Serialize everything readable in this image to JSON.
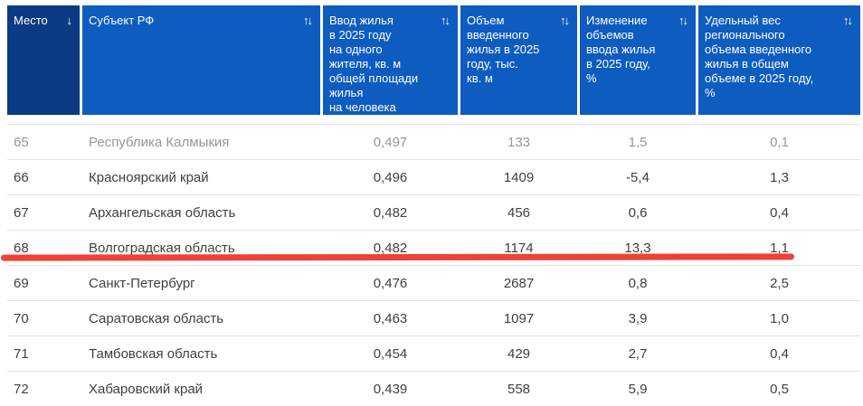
{
  "table": {
    "columns": [
      {
        "label": "Место",
        "sort_icon": "↓"
      },
      {
        "label": "Субъект РФ",
        "sort_icon": "↑↓"
      },
      {
        "label": "Ввод жилья\nв 2025 году\nна одного\nжителя, кв. м\nобщей площади\nжилья\nна человека",
        "sort_icon": "↑↓"
      },
      {
        "label": "Объем\nвведенного\nжилья в 2025\nгоду, тыс.\nкв. м",
        "sort_icon": "↑↓"
      },
      {
        "label": "Изменение\nобъемов\nввода жилья\nв 2025 году,\n%",
        "sort_icon": "↑↓"
      },
      {
        "label": "Удельный вес\nрегионального\nобъема введенного\nжилья в общем\nобъеме в 2025 году,\n%",
        "sort_icon": "↑↓"
      }
    ],
    "rows": [
      {
        "place": "65",
        "region": "Республика Калмыкия",
        "per_capita": "0,497",
        "volume": "133",
        "change": "1,5",
        "share": "0,1",
        "muted": true
      },
      {
        "place": "66",
        "region": "Красноярский край",
        "per_capita": "0,496",
        "volume": "1409",
        "change": "-5,4",
        "share": "1,3"
      },
      {
        "place": "67",
        "region": "Архангельская область",
        "per_capita": "0,482",
        "volume": "456",
        "change": "0,6",
        "share": "0,4"
      },
      {
        "place": "68",
        "region": "Волгоградская область",
        "per_capita": "0,482",
        "volume": "1174",
        "change": "13,3",
        "share": "1,1",
        "highlighted": true
      },
      {
        "place": "69",
        "region": "Санкт-Петербург",
        "per_capita": "0,476",
        "volume": "2687",
        "change": "0,8",
        "share": "2,5"
      },
      {
        "place": "70",
        "region": "Саратовская область",
        "per_capita": "0,463",
        "volume": "1097",
        "change": "3,9",
        "share": "1,0"
      },
      {
        "place": "71",
        "region": "Тамбовская область",
        "per_capita": "0,454",
        "volume": "429",
        "change": "2,7",
        "share": "0,4"
      },
      {
        "place": "72",
        "region": "Хабаровский край",
        "per_capita": "0,439",
        "volume": "558",
        "change": "5,9",
        "share": "0,5"
      }
    ],
    "colors": {
      "header_dark": "#0c3a84",
      "header_blue": "#0e5cc0",
      "row_separator": "#e2e2e2",
      "row_text": "#3f3f3f",
      "muted_text": "#979797",
      "highlight_red": "#ef4136"
    }
  }
}
